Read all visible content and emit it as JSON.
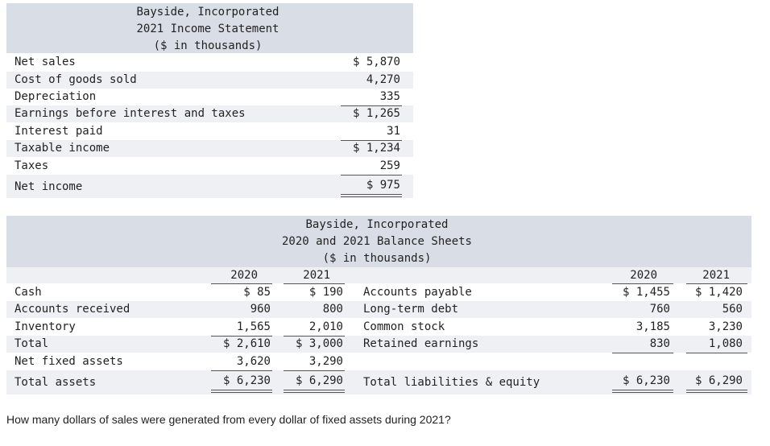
{
  "income_statement": {
    "title_line1": "Bayside, Incorporated",
    "title_line2": "2021 Income Statement",
    "title_line3": "($ in thousands)",
    "rows": [
      {
        "label": "Net sales",
        "value": "$ 5,870"
      },
      {
        "label": "Cost of goods sold",
        "value": "4,270"
      },
      {
        "label": "Depreciation",
        "value": "335"
      },
      {
        "label": "Earnings before interest and taxes",
        "value": "$ 1,265"
      },
      {
        "label": "Interest paid",
        "value": "31"
      },
      {
        "label": "Taxable income",
        "value": "$ 1,234"
      },
      {
        "label": "Taxes",
        "value": "259"
      },
      {
        "label": "Net income",
        "value": "$ 975"
      }
    ]
  },
  "balance_sheet": {
    "title_line1": "Bayside, Incorporated",
    "title_line2": "2020 and 2021 Balance Sheets",
    "title_line3": "($ in thousands)",
    "year_a": "2020",
    "year_b": "2021",
    "assets": [
      {
        "label": "Cash",
        "y2020": "$ 85",
        "y2021": "$ 190"
      },
      {
        "label": "Accounts received",
        "y2020": "960",
        "y2021": "800"
      },
      {
        "label": "Inventory",
        "y2020": "1,565",
        "y2021": "2,010"
      },
      {
        "label": "Total",
        "y2020": "$ 2,610",
        "y2021": "$ 3,000"
      },
      {
        "label": "Net fixed assets",
        "y2020": "3,620",
        "y2021": "3,290"
      },
      {
        "label": "Total assets",
        "y2020": "$ 6,230",
        "y2021": "$ 6,290"
      }
    ],
    "liabilities": [
      {
        "label": "Accounts payable",
        "y2020": "$ 1,455",
        "y2021": "$ 1,420"
      },
      {
        "label": "Long-term debt",
        "y2020": "760",
        "y2021": "560"
      },
      {
        "label": "Common stock",
        "y2020": "3,185",
        "y2021": "3,230"
      },
      {
        "label": "Retained earnings",
        "y2020": "830",
        "y2021": "1,080"
      },
      {
        "label": "",
        "y2020": "",
        "y2021": ""
      },
      {
        "label": "Total liabilities & equity",
        "y2020": "$ 6,230",
        "y2021": "$ 6,290"
      }
    ]
  },
  "question": "How many dollars of sales were generated from every dollar of fixed assets during 2021?"
}
